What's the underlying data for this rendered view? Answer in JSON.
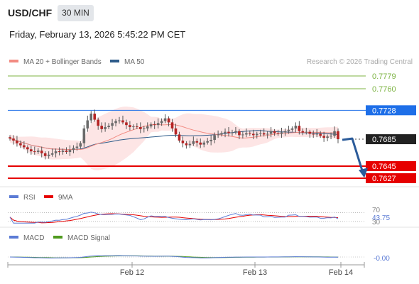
{
  "header": {
    "symbol": "USD/CHF",
    "timeframe": "30 MIN",
    "datetime": "Friday, February 13, 2026 5:45:22 PM CET"
  },
  "legend": {
    "ma20": "MA 20 + Bollinger Bands",
    "ma50": "MA 50",
    "credit": "Research © 2026 Trading Central"
  },
  "colors": {
    "ma20": "#f28b82",
    "ma50": "#2e5c8a",
    "bands": "#fde0e0",
    "green": "#7cb342",
    "blue_level": "#1e6fe8",
    "red_level": "#e60000",
    "price_tag": "#222222",
    "arrow": "#2b5b9a",
    "rsi": "#5b7bd5",
    "rsi_ma": "#e60000",
    "macd": "#5b7bd5",
    "macd_signal": "#4f9a1e"
  },
  "chart_data": [
    {
      "type": "candlestick",
      "title": "USD/CHF 30 MIN",
      "x_ticks": [
        "Feb 12",
        "Feb 13",
        "Feb 14"
      ],
      "ylim": [
        0.7615,
        0.7785
      ],
      "levels": [
        {
          "value": "0.7779",
          "kind": "resistance",
          "color": "green"
        },
        {
          "value": "0.7760",
          "kind": "resistance",
          "color": "green"
        },
        {
          "value": "0.7728",
          "kind": "pivot",
          "color": "blue"
        },
        {
          "value": "0.7645",
          "kind": "support",
          "color": "red"
        },
        {
          "value": "0.7627",
          "kind": "support",
          "color": "red"
        }
      ],
      "last_price": "0.7685",
      "close": [
        0.7686,
        0.7683,
        0.7679,
        0.7676,
        0.7673,
        0.767,
        0.7667,
        0.7666,
        0.7668,
        0.7664,
        0.766,
        0.7662,
        0.7664,
        0.7667,
        0.7666,
        0.7668,
        0.7666,
        0.7669,
        0.7672,
        0.7674,
        0.7679,
        0.7701,
        0.7713,
        0.7723,
        0.7714,
        0.7705,
        0.77,
        0.7703,
        0.7705,
        0.7709,
        0.7712,
        0.7713,
        0.771,
        0.7706,
        0.7703,
        0.7704,
        0.7703,
        0.77,
        0.7701,
        0.7704,
        0.7707,
        0.7706,
        0.7709,
        0.7712,
        0.7716,
        0.771,
        0.7701,
        0.7692,
        0.7683,
        0.7679,
        0.7676,
        0.7678,
        0.7682,
        0.768,
        0.7677,
        0.768,
        0.7682,
        0.7684,
        0.7691,
        0.7692,
        0.7694,
        0.7696,
        0.7694,
        0.7695,
        0.7697,
        0.7691,
        0.7692,
        0.7694,
        0.7693,
        0.7691,
        0.7693,
        0.7694,
        0.7692,
        0.7693,
        0.7697,
        0.7694,
        0.7693,
        0.7695,
        0.7697,
        0.7699,
        0.7701,
        0.7705,
        0.7697,
        0.7695,
        0.7696,
        0.7693,
        0.7692,
        0.7693,
        0.769,
        0.7687,
        0.7689,
        0.769,
        0.7697,
        0.7685
      ],
      "rsi": {
        "name": "RSI",
        "ma_name": "9MA",
        "value": "43.75",
        "ticks": [
          "70",
          "30"
        ]
      },
      "macd": {
        "name": "MACD",
        "signal_name": "MACD Signal",
        "value": "-0.00"
      }
    }
  ]
}
